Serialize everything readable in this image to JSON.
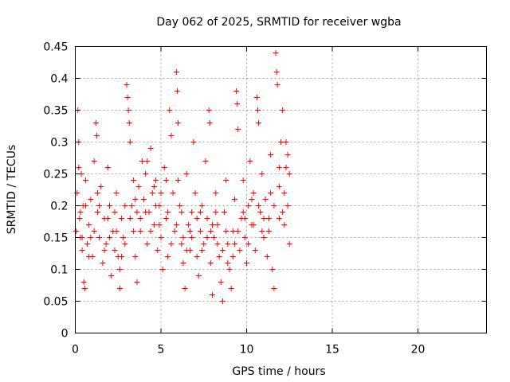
{
  "chart_data": {
    "type": "scatter",
    "title": "Day 062 of 2025, SRMTID for receiver wgba",
    "xlabel": "GPS time / hours",
    "ylabel": "SRMTID / TECUs",
    "xlim": [
      0,
      24
    ],
    "ylim": [
      0,
      0.45
    ],
    "xticks": [
      0,
      5,
      10,
      15,
      20
    ],
    "xtick_labels": [
      "0",
      "5",
      "10",
      "15",
      "20"
    ],
    "yticks": [
      0,
      0.05,
      0.1,
      0.15,
      0.2,
      0.25,
      0.3,
      0.35,
      0.4,
      0.45
    ],
    "ytick_labels": [
      "0",
      "0.05",
      "0.1",
      "0.15",
      "0.2",
      "0.25",
      "0.3",
      "0.35",
      "0.4",
      "0.45"
    ],
    "grid": true,
    "marker": "plus",
    "color": "#ff0000",
    "series": [
      {
        "points": [
          [
            0.05,
            0.16
          ],
          [
            0.1,
            0.22
          ],
          [
            0.15,
            0.35
          ],
          [
            0.2,
            0.3
          ],
          [
            0.25,
            0.18
          ],
          [
            0.3,
            0.15
          ],
          [
            0.35,
            0.25
          ],
          [
            0.4,
            0.13
          ],
          [
            0.45,
            0.2
          ],
          [
            0.5,
            0.08
          ],
          [
            0.55,
            0.07
          ],
          [
            0.6,
            0.24
          ],
          [
            0.7,
            0.14
          ],
          [
            0.8,
            0.17
          ],
          [
            0.9,
            0.21
          ],
          [
            1.0,
            0.12
          ],
          [
            1.1,
            0.16
          ],
          [
            1.2,
            0.33
          ],
          [
            1.25,
            0.31
          ],
          [
            1.3,
            0.19
          ],
          [
            1.4,
            0.15
          ],
          [
            1.5,
            0.23
          ],
          [
            1.6,
            0.11
          ],
          [
            1.7,
            0.18
          ],
          [
            1.8,
            0.14
          ],
          [
            1.9,
            0.26
          ],
          [
            2.0,
            0.2
          ],
          [
            2.1,
            0.09
          ],
          [
            2.2,
            0.16
          ],
          [
            2.3,
            0.13
          ],
          [
            2.4,
            0.22
          ],
          [
            2.5,
            0.12
          ],
          [
            2.6,
            0.07
          ],
          [
            2.7,
            0.18
          ],
          [
            2.8,
            0.15
          ],
          [
            2.9,
            0.2
          ],
          [
            3.0,
            0.39
          ],
          [
            3.05,
            0.37
          ],
          [
            3.1,
            0.35
          ],
          [
            3.15,
            0.33
          ],
          [
            3.2,
            0.3
          ],
          [
            3.3,
            0.2
          ],
          [
            3.4,
            0.16
          ],
          [
            3.5,
            0.12
          ],
          [
            3.6,
            0.08
          ],
          [
            3.7,
            0.23
          ],
          [
            3.8,
            0.18
          ],
          [
            3.9,
            0.27
          ],
          [
            4.0,
            0.21
          ],
          [
            4.1,
            0.25
          ],
          [
            4.2,
            0.14
          ],
          [
            4.3,
            0.19
          ],
          [
            4.4,
            0.29
          ],
          [
            4.5,
            0.22
          ],
          [
            4.6,
            0.17
          ],
          [
            4.7,
            0.24
          ],
          [
            4.8,
            0.13
          ],
          [
            4.9,
            0.2
          ],
          [
            5.0,
            0.15
          ],
          [
            5.1,
            0.1
          ],
          [
            5.2,
            0.26
          ],
          [
            5.3,
            0.18
          ],
          [
            5.4,
            0.12
          ],
          [
            5.5,
            0.35
          ],
          [
            5.6,
            0.31
          ],
          [
            5.7,
            0.22
          ],
          [
            5.8,
            0.16
          ],
          [
            5.9,
            0.41
          ],
          [
            5.95,
            0.38
          ],
          [
            6.0,
            0.33
          ],
          [
            6.1,
            0.2
          ],
          [
            6.2,
            0.14
          ],
          [
            6.3,
            0.11
          ],
          [
            6.4,
            0.07
          ],
          [
            6.5,
            0.25
          ],
          [
            6.6,
            0.17
          ],
          [
            6.7,
            0.13
          ],
          [
            6.8,
            0.19
          ],
          [
            6.9,
            0.3
          ],
          [
            7.0,
            0.22
          ],
          [
            7.1,
            0.12
          ],
          [
            7.2,
            0.09
          ],
          [
            7.3,
            0.16
          ],
          [
            7.4,
            0.2
          ],
          [
            7.5,
            0.14
          ],
          [
            7.6,
            0.27
          ],
          [
            7.7,
            0.18
          ],
          [
            7.8,
            0.35
          ],
          [
            7.85,
            0.33
          ],
          [
            7.9,
            0.11
          ],
          [
            8.0,
            0.06
          ],
          [
            8.1,
            0.15
          ],
          [
            8.2,
            0.22
          ],
          [
            8.3,
            0.17
          ],
          [
            8.4,
            0.12
          ],
          [
            8.5,
            0.08
          ],
          [
            8.6,
            0.05
          ],
          [
            8.7,
            0.19
          ],
          [
            8.8,
            0.24
          ],
          [
            8.9,
            0.14
          ],
          [
            9.0,
            0.1
          ],
          [
            9.1,
            0.07
          ],
          [
            9.2,
            0.16
          ],
          [
            9.3,
            0.21
          ],
          [
            9.4,
            0.38
          ],
          [
            9.45,
            0.36
          ],
          [
            9.5,
            0.32
          ],
          [
            9.6,
            0.13
          ],
          [
            9.7,
            0.18
          ],
          [
            9.8,
            0.24
          ],
          [
            9.9,
            0.15
          ],
          [
            10.0,
            0.11
          ],
          [
            10.1,
            0.2
          ],
          [
            10.2,
            0.27
          ],
          [
            10.3,
            0.17
          ],
          [
            10.4,
            0.22
          ],
          [
            10.5,
            0.13
          ],
          [
            10.6,
            0.37
          ],
          [
            10.65,
            0.35
          ],
          [
            10.7,
            0.33
          ],
          [
            10.8,
            0.19
          ],
          [
            10.9,
            0.25
          ],
          [
            11.0,
            0.15
          ],
          [
            11.1,
            0.21
          ],
          [
            11.2,
            0.12
          ],
          [
            11.3,
            0.18
          ],
          [
            11.4,
            0.28
          ],
          [
            11.5,
            0.1
          ],
          [
            11.6,
            0.07
          ],
          [
            11.7,
            0.44
          ],
          [
            11.75,
            0.41
          ],
          [
            11.8,
            0.39
          ],
          [
            11.9,
            0.23
          ],
          [
            12.0,
            0.3
          ],
          [
            12.1,
            0.35
          ],
          [
            12.2,
            0.17
          ],
          [
            12.3,
            0.26
          ],
          [
            12.4,
            0.2
          ],
          [
            12.5,
            0.14
          ],
          [
            0.3,
            0.19
          ],
          [
            0.6,
            0.2
          ],
          [
            0.9,
            0.15
          ],
          [
            1.1,
            0.27
          ],
          [
            1.4,
            0.2
          ],
          [
            1.7,
            0.13
          ],
          [
            2.0,
            0.15
          ],
          [
            2.3,
            0.19
          ],
          [
            2.6,
            0.1
          ],
          [
            2.9,
            0.14
          ],
          [
            3.2,
            0.18
          ],
          [
            3.5,
            0.21
          ],
          [
            3.8,
            0.16
          ],
          [
            4.1,
            0.19
          ],
          [
            4.4,
            0.16
          ],
          [
            4.7,
            0.2
          ],
          [
            5.0,
            0.22
          ],
          [
            5.3,
            0.24
          ],
          [
            5.6,
            0.14
          ],
          [
            5.9,
            0.17
          ],
          [
            6.2,
            0.19
          ],
          [
            6.5,
            0.13
          ],
          [
            6.8,
            0.15
          ],
          [
            7.1,
            0.18
          ],
          [
            7.4,
            0.13
          ],
          [
            7.7,
            0.15
          ],
          [
            8.0,
            0.17
          ],
          [
            8.3,
            0.14
          ],
          [
            8.6,
            0.13
          ],
          [
            8.9,
            0.11
          ],
          [
            9.2,
            0.12
          ],
          [
            9.5,
            0.16
          ],
          [
            9.8,
            0.19
          ],
          [
            10.1,
            0.14
          ],
          [
            10.4,
            0.17
          ],
          [
            10.7,
            0.2
          ],
          [
            11.0,
            0.18
          ],
          [
            11.3,
            0.16
          ],
          [
            11.6,
            0.2
          ],
          [
            11.9,
            0.18
          ],
          [
            12.2,
            0.22
          ],
          [
            12.5,
            0.25
          ],
          [
            12.4,
            0.28
          ],
          [
            12.3,
            0.3
          ],
          [
            0.2,
            0.26
          ],
          [
            0.4,
            0.15
          ],
          [
            0.8,
            0.12
          ],
          [
            1.3,
            0.22
          ],
          [
            1.9,
            0.18
          ],
          [
            2.4,
            0.16
          ],
          [
            2.7,
            0.12
          ],
          [
            3.4,
            0.24
          ],
          [
            3.6,
            0.19
          ],
          [
            4.2,
            0.27
          ],
          [
            4.6,
            0.23
          ],
          [
            4.9,
            0.17
          ],
          [
            5.4,
            0.19
          ],
          [
            6.0,
            0.24
          ],
          [
            6.3,
            0.15
          ],
          [
            6.7,
            0.16
          ],
          [
            7.3,
            0.19
          ],
          [
            7.9,
            0.16
          ],
          [
            8.2,
            0.19
          ],
          [
            8.8,
            0.16
          ],
          [
            9.3,
            0.14
          ],
          [
            9.9,
            0.18
          ],
          [
            10.3,
            0.21
          ],
          [
            10.9,
            0.16
          ],
          [
            11.4,
            0.22
          ],
          [
            11.9,
            0.26
          ],
          [
            12.1,
            0.19
          ]
        ]
      }
    ]
  }
}
